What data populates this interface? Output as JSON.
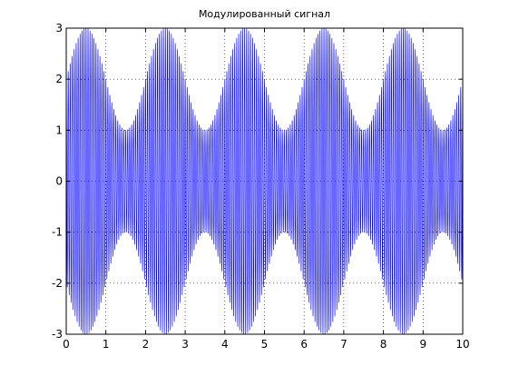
{
  "chart_data": {
    "type": "line",
    "title": "Модулированный сигнал",
    "xlabel": "",
    "ylabel": "",
    "xlim": [
      0,
      10
    ],
    "ylim": [
      -3,
      3
    ],
    "xticks": [
      0,
      1,
      2,
      3,
      4,
      5,
      6,
      7,
      8,
      9,
      10
    ],
    "yticks": [
      -3,
      -2,
      -1,
      0,
      1,
      2,
      3
    ],
    "xtick_labels": [
      "0",
      "1",
      "2",
      "3",
      "4",
      "5",
      "6",
      "7",
      "8",
      "9",
      "10"
    ],
    "ytick_labels": [
      "-3",
      "-2",
      "-1",
      "0",
      "1",
      "2",
      "3"
    ],
    "grid": true,
    "grid_style": "dotted",
    "line_color": "#0000ff",
    "series": [
      {
        "signal": {
          "form": "y = (A + m*cos(2*pi*fm*t + phase)) * cos(2*pi*fc*t)",
          "A": 2.0,
          "m": 1.0,
          "fm": 0.5,
          "phase": -1.5708,
          "fc": 20,
          "t_start": 0,
          "t_end": 10,
          "t_step": 0.001
        }
      }
    ]
  }
}
